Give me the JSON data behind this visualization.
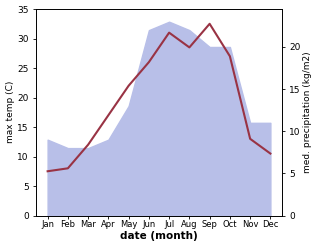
{
  "months": [
    "Jan",
    "Feb",
    "Mar",
    "Apr",
    "May",
    "Jun",
    "Jul",
    "Aug",
    "Sep",
    "Oct",
    "Nov",
    "Dec"
  ],
  "temp": [
    7.5,
    8.0,
    12.0,
    17.0,
    22.0,
    26.0,
    31.0,
    28.5,
    32.5,
    27.0,
    13.0,
    10.5
  ],
  "precip": [
    9.0,
    8.0,
    8.0,
    9.0,
    13.0,
    22.0,
    23.0,
    22.0,
    20.0,
    20.0,
    11.0,
    11.0
  ],
  "temp_color": "#993344",
  "precip_fill_color": "#b8bfe8",
  "ylim_temp": [
    0,
    35
  ],
  "ylim_precip": [
    0,
    24.5
  ],
  "ylabel_left": "max temp (C)",
  "ylabel_right": "med. precipitation (kg/m2)",
  "xlabel": "date (month)",
  "background_color": "#ffffff",
  "left_yticks": [
    0,
    5,
    10,
    15,
    20,
    25,
    30,
    35
  ],
  "right_yticks": [
    0,
    5,
    10,
    15,
    20
  ]
}
